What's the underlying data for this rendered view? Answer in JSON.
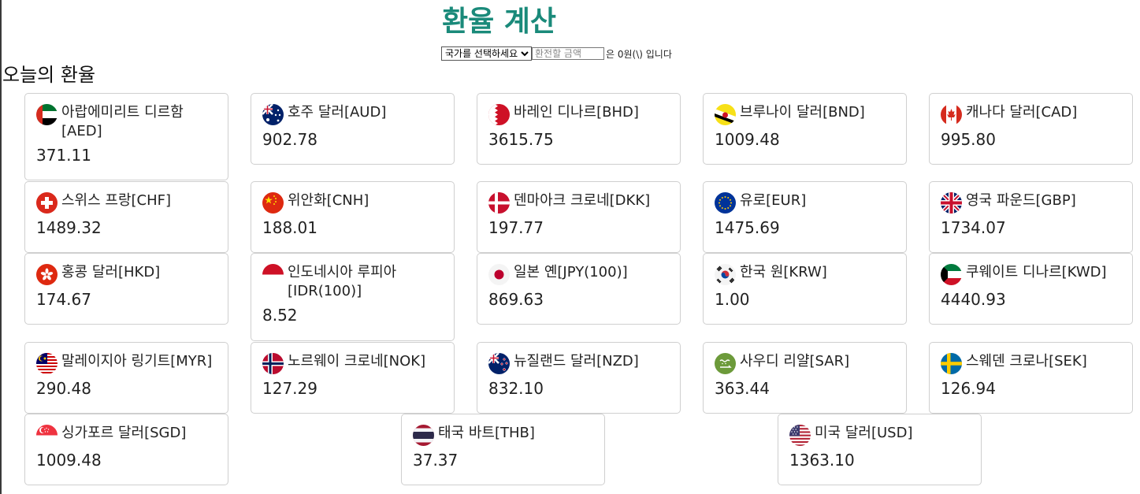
{
  "page": {
    "title": "환율 계산",
    "section_title": "오늘의 환율"
  },
  "converter": {
    "select_value": "국가를 선택하세요",
    "amount_placeholder": "환전할 금액",
    "result_text": "은 0원(\\) 입니다"
  },
  "rates": [
    {
      "name": "아랍에미리트 디르함[AED]",
      "rate": "371.11",
      "flag": "uae-flag-icon"
    },
    {
      "name": "호주 달러[AUD]",
      "rate": "902.78",
      "flag": "australia-flag-icon"
    },
    {
      "name": "바레인 디나르[BHD]",
      "rate": "3615.75",
      "flag": "bahrain-flag-icon"
    },
    {
      "name": "브루나이 달러[BND]",
      "rate": "1009.48",
      "flag": "brunei-flag-icon"
    },
    {
      "name": "캐나다 달러[CAD]",
      "rate": "995.80",
      "flag": "canada-flag-icon"
    },
    {
      "name": "스위스 프랑[CHF]",
      "rate": "1489.32",
      "flag": "switzerland-flag-icon"
    },
    {
      "name": "위안화[CNH]",
      "rate": "188.01",
      "flag": "china-flag-icon"
    },
    {
      "name": "덴마아크 크로네[DKK]",
      "rate": "197.77",
      "flag": "denmark-flag-icon"
    },
    {
      "name": "유로[EUR]",
      "rate": "1475.69",
      "flag": "eu-flag-icon"
    },
    {
      "name": "영국 파운드[GBP]",
      "rate": "1734.07",
      "flag": "uk-flag-icon"
    },
    {
      "name": "홍콩 달러[HKD]",
      "rate": "174.67",
      "flag": "hongkong-flag-icon"
    },
    {
      "name": "인도네시아 루피아[IDR(100)]",
      "rate": "8.52",
      "flag": "indonesia-flag-icon"
    },
    {
      "name": "일본 옌[JPY(100)]",
      "rate": "869.63",
      "flag": "japan-flag-icon"
    },
    {
      "name": "한국 원[KRW]",
      "rate": "1.00",
      "flag": "korea-flag-icon"
    },
    {
      "name": "쿠웨이트 디나르[KWD]",
      "rate": "4440.93",
      "flag": "kuwait-flag-icon"
    },
    {
      "name": "말레이지아 링기트[MYR]",
      "rate": "290.48",
      "flag": "malaysia-flag-icon"
    },
    {
      "name": "노르웨이 크로네[NOK]",
      "rate": "127.29",
      "flag": "norway-flag-icon"
    },
    {
      "name": "뉴질랜드 달러[NZD]",
      "rate": "832.10",
      "flag": "newzealand-flag-icon"
    },
    {
      "name": "사우디 리얄[SAR]",
      "rate": "363.44",
      "flag": "saudi-flag-icon"
    },
    {
      "name": "스웨덴 크로나[SEK]",
      "rate": "126.94",
      "flag": "sweden-flag-icon"
    },
    {
      "name": "싱가포르 달러[SGD]",
      "rate": "1009.48",
      "flag": "singapore-flag-icon"
    },
    {
      "name": "태국 바트[THB]",
      "rate": "37.37",
      "flag": "thailand-flag-icon"
    },
    {
      "name": "미국 달러[USD]",
      "rate": "1363.10",
      "flag": "usa-flag-icon"
    }
  ]
}
